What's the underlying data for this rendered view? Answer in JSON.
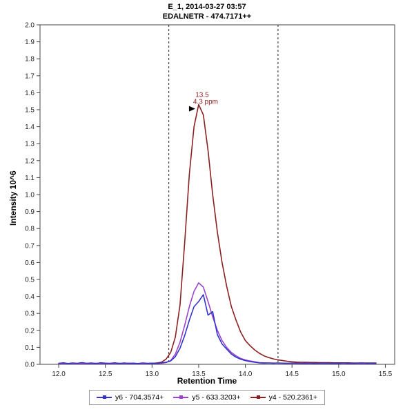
{
  "header": {
    "title_line1": "E_1, 2014-03-27 03:57",
    "title_line2": "EDALNETR - 474.7171++"
  },
  "chart_data": {
    "type": "line",
    "title": "E_1, 2014-03-27 03:57",
    "subtitle": "EDALNETR - 474.7171++",
    "xlabel": "Retention Time",
    "ylabel": "Intensity 10^6",
    "xlim": [
      11.8,
      15.6
    ],
    "ylim": [
      0,
      2.0
    ],
    "x_ticks": [
      12.0,
      12.5,
      13.0,
      13.5,
      14.0,
      14.5,
      15.0,
      15.5
    ],
    "x_tick_labels": [
      "12.0",
      "12.5",
      "13.0",
      "13.5",
      "14.0",
      "14.5",
      "15.0",
      "15.5"
    ],
    "y_ticks": [
      0,
      0.1,
      0.2,
      0.3,
      0.4,
      0.5,
      0.6,
      0.7,
      0.8,
      0.9,
      1.0,
      1.1,
      1.2,
      1.3,
      1.4,
      1.5,
      1.6,
      1.7,
      1.8,
      1.9,
      2.0
    ],
    "y_tick_labels": [
      "0.0",
      "0.1",
      "0.2",
      "0.3",
      "0.4",
      "0.5",
      "0.6",
      "0.7",
      "0.8",
      "0.9",
      "1.0",
      "1.1",
      "1.2",
      "1.3",
      "1.4",
      "1.5",
      "1.6",
      "1.7",
      "1.8",
      "1.9",
      "2.0"
    ],
    "legend_position": "bottom",
    "grid": false,
    "integration_boundaries": [
      13.18,
      14.35
    ],
    "annotation": {
      "rt_label": "13.5",
      "ppm_label": "4.3 ppm",
      "x": 13.5,
      "y": 1.53,
      "color": "#8b2020"
    },
    "x": [
      12.0,
      12.05,
      12.1,
      12.15,
      12.2,
      12.25,
      12.3,
      12.35,
      12.4,
      12.45,
      12.5,
      12.55,
      12.6,
      12.65,
      12.7,
      12.75,
      12.8,
      12.85,
      12.9,
      12.95,
      13.0,
      13.05,
      13.1,
      13.15,
      13.2,
      13.25,
      13.3,
      13.35,
      13.4,
      13.45,
      13.5,
      13.55,
      13.6,
      13.65,
      13.7,
      13.75,
      13.8,
      13.85,
      13.9,
      13.95,
      14.0,
      14.05,
      14.1,
      14.15,
      14.2,
      14.25,
      14.3,
      14.35,
      14.4,
      14.45,
      14.5,
      14.55,
      14.6,
      14.65,
      14.7,
      14.75,
      14.8,
      14.85,
      14.9,
      14.95,
      15.0,
      15.05,
      15.1,
      15.15,
      15.2,
      15.25,
      15.3,
      15.35,
      15.4
    ],
    "series": [
      {
        "name": "y6 - 704.3574+",
        "color": "#3333cc",
        "values": [
          0.006,
          0.009,
          0.005,
          0.008,
          0.006,
          0.01,
          0.006,
          0.008,
          0.005,
          0.009,
          0.007,
          0.006,
          0.009,
          0.005,
          0.008,
          0.006,
          0.007,
          0.005,
          0.008,
          0.006,
          0.007,
          0.006,
          0.009,
          0.012,
          0.02,
          0.045,
          0.095,
          0.17,
          0.26,
          0.34,
          0.37,
          0.41,
          0.29,
          0.31,
          0.175,
          0.12,
          0.09,
          0.06,
          0.042,
          0.03,
          0.022,
          0.016,
          0.012,
          0.008,
          0.007,
          0.008,
          0.006,
          0.008,
          0.007,
          0.006,
          0.008,
          0.007,
          0.006,
          0.008,
          0.007,
          0.006,
          0.007,
          0.008,
          0.006,
          0.007,
          0.006,
          0.008,
          0.007,
          0.006,
          0.007,
          0.008,
          0.006,
          0.007,
          0.006
        ]
      },
      {
        "name": "y5 - 633.3203+",
        "color": "#9944cc",
        "values": [
          0.004,
          0.005,
          0.004,
          0.005,
          0.004,
          0.005,
          0.004,
          0.004,
          0.005,
          0.004,
          0.005,
          0.004,
          0.004,
          0.005,
          0.004,
          0.005,
          0.004,
          0.004,
          0.005,
          0.004,
          0.005,
          0.005,
          0.006,
          0.01,
          0.022,
          0.06,
          0.13,
          0.23,
          0.34,
          0.43,
          0.48,
          0.455,
          0.37,
          0.28,
          0.2,
          0.14,
          0.1,
          0.07,
          0.05,
          0.035,
          0.026,
          0.02,
          0.015,
          0.01,
          0.009,
          0.008,
          0.008,
          0.007,
          0.007,
          0.006,
          0.006,
          0.006,
          0.006,
          0.005,
          0.006,
          0.005,
          0.006,
          0.005,
          0.006,
          0.005,
          0.005,
          0.006,
          0.005,
          0.005,
          0.006,
          0.005,
          0.005,
          0.006,
          0.005
        ]
      },
      {
        "name": "y4 - 520.2361+",
        "color": "#8b2020",
        "values": [
          0.005,
          0.006,
          0.005,
          0.006,
          0.005,
          0.006,
          0.005,
          0.005,
          0.006,
          0.005,
          0.006,
          0.005,
          0.005,
          0.006,
          0.005,
          0.006,
          0.005,
          0.005,
          0.006,
          0.005,
          0.006,
          0.008,
          0.012,
          0.03,
          0.07,
          0.16,
          0.35,
          0.72,
          1.12,
          1.4,
          1.53,
          1.47,
          1.26,
          1.0,
          0.78,
          0.6,
          0.46,
          0.34,
          0.26,
          0.19,
          0.14,
          0.11,
          0.085,
          0.065,
          0.05,
          0.04,
          0.032,
          0.026,
          0.022,
          0.018,
          0.015,
          0.013,
          0.012,
          0.012,
          0.011,
          0.011,
          0.01,
          0.01,
          0.01,
          0.009,
          0.009,
          0.009,
          0.009,
          0.008,
          0.008,
          0.008,
          0.008,
          0.008,
          0.008
        ]
      }
    ]
  }
}
